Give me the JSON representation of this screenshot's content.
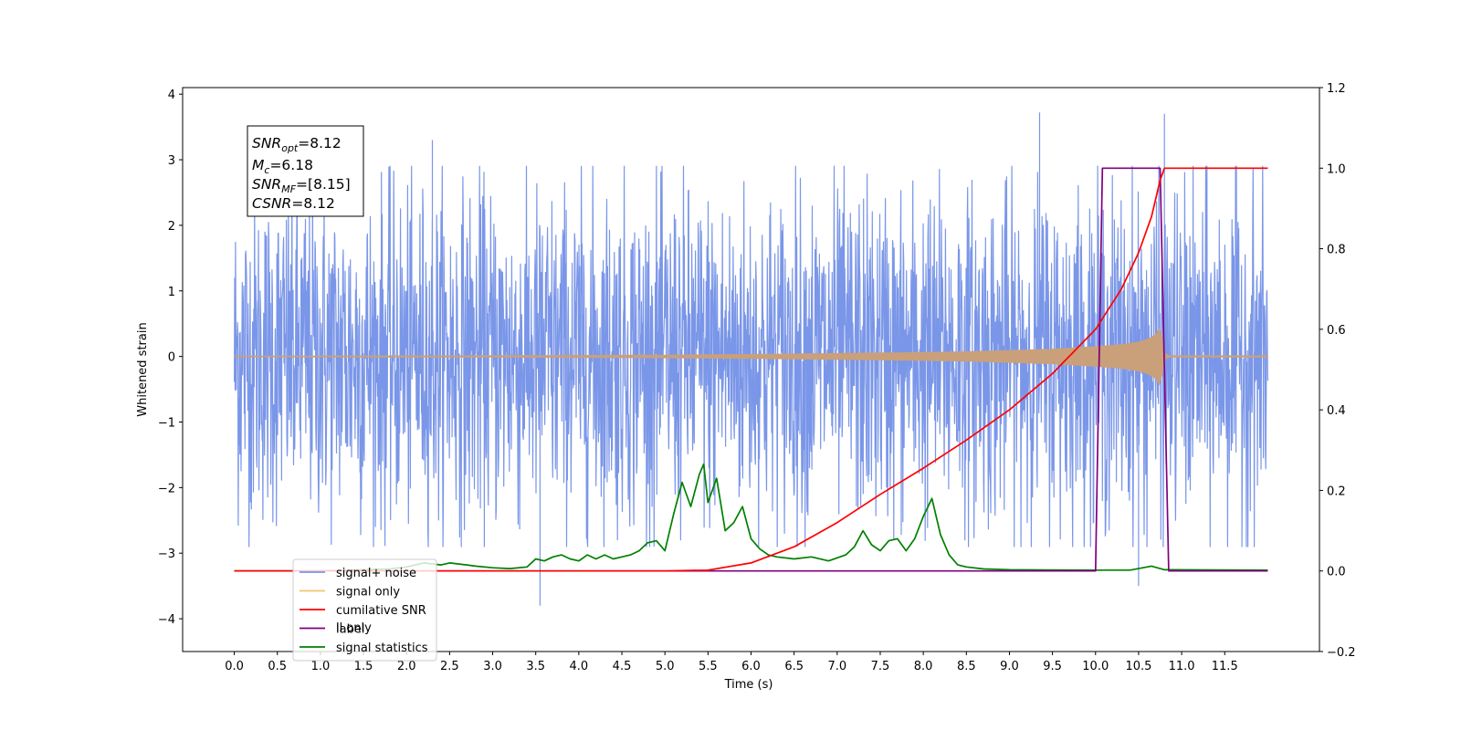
{
  "chart_data": {
    "type": "line",
    "title": "",
    "xlabel": "Time (s)",
    "ylabel": "Whitened strain",
    "xlim": [
      -0.6,
      12.6
    ],
    "ylim_left": [
      -4.5,
      4.1
    ],
    "ylim_right": [
      -0.2,
      1.2
    ],
    "x_ticks": [
      "0.0",
      "0.5",
      "1.0",
      "1.5",
      "2.0",
      "2.5",
      "3.0",
      "3.5",
      "4.0",
      "4.5",
      "5.0",
      "5.5",
      "6.0",
      "6.5",
      "7.0",
      "7.5",
      "8.0",
      "8.5",
      "9.0",
      "9.5",
      "10.0",
      "10.5",
      "11.0",
      "11.5"
    ],
    "y_ticks_left": [
      "4",
      "3",
      "2",
      "1",
      "0",
      "−1",
      "−2",
      "−3",
      "−4"
    ],
    "y_ticks_right": [
      "1.2",
      "1.0",
      "0.8",
      "0.6",
      "0.4",
      "0.2",
      "0.0",
      "−0.2"
    ],
    "annotation": {
      "snr_opt": {
        "name": "SNR",
        "sub": "opt",
        "value": "=8.12"
      },
      "mc": {
        "name": "M",
        "sub": "c",
        "value": "=6.18"
      },
      "snr_mf": {
        "name": "SNR",
        "sub": "MF",
        "value": "=[8.15]"
      },
      "csnr": {
        "name": "CSNR",
        "value": "=8.12"
      }
    },
    "legend": {
      "placement": "lower-left",
      "items": [
        {
          "label": "signal+ noise",
          "color": "#7a96e8"
        },
        {
          "label": "signal only",
          "color": "#f7c46b"
        },
        {
          "label": "cumilative SNR",
          "color": "#ff0000"
        },
        {
          "label": "label",
          "color": "#800080"
        },
        {
          "label": "signal statistics",
          "color": "#008000"
        }
      ]
    },
    "hidden_text": "ll only",
    "series": [
      {
        "name": "signal+ noise",
        "axis": "left",
        "color": "#7a96e8",
        "kind": "noise",
        "x_range": [
          0.0,
          12.0
        ],
        "typical_range": [
          -2.0,
          2.0
        ],
        "peak_x": [
          9.35,
          10.8,
          2.3,
          3.55,
          10.5
        ],
        "peak_y": [
          3.72,
          3.7,
          3.3,
          -3.8,
          -3.5
        ]
      },
      {
        "name": "signal only",
        "axis": "left",
        "color": "#c9a07a",
        "kind": "chirp",
        "x": [
          0,
          3,
          5,
          6,
          7,
          8,
          8.5,
          9,
          9.5,
          10,
          10.3,
          10.5,
          10.6,
          10.7,
          10.75,
          10.8,
          10.85,
          12.0
        ],
        "envelope": [
          0.005,
          0.01,
          0.02,
          0.03,
          0.045,
          0.06,
          0.07,
          0.09,
          0.11,
          0.15,
          0.18,
          0.22,
          0.26,
          0.33,
          0.45,
          0.05,
          0.01,
          0.01
        ]
      },
      {
        "name": "cumilative SNR",
        "axis": "right",
        "color": "#ff0000",
        "x": [
          0,
          5.0,
          5.5,
          6.0,
          6.5,
          7.0,
          7.5,
          8.0,
          8.5,
          9.0,
          9.5,
          10.0,
          10.3,
          10.5,
          10.65,
          10.75,
          10.8,
          12.0
        ],
        "values": [
          0,
          0,
          0.002,
          0.02,
          0.06,
          0.12,
          0.19,
          0.255,
          0.325,
          0.4,
          0.49,
          0.6,
          0.7,
          0.79,
          0.88,
          0.97,
          1.0,
          1.0
        ]
      },
      {
        "name": "label",
        "axis": "right",
        "color": "#800080",
        "x": [
          0,
          10.0,
          10.08,
          10.75,
          10.85,
          12.0
        ],
        "values": [
          0,
          0,
          1.0,
          1.0,
          0,
          0
        ]
      },
      {
        "name": "signal statistics",
        "axis": "right",
        "color": "#008000",
        "x": [
          0,
          1.0,
          1.8,
          2.0,
          2.2,
          2.4,
          2.5,
          2.7,
          2.8,
          3.0,
          3.2,
          3.4,
          3.5,
          3.6,
          3.7,
          3.8,
          3.9,
          4.0,
          4.1,
          4.2,
          4.3,
          4.4,
          4.5,
          4.6,
          4.7,
          4.8,
          4.9,
          5.0,
          5.1,
          5.2,
          5.3,
          5.4,
          5.45,
          5.5,
          5.6,
          5.7,
          5.8,
          5.9,
          6.0,
          6.1,
          6.2,
          6.3,
          6.5,
          6.7,
          6.9,
          7.1,
          7.2,
          7.3,
          7.4,
          7.5,
          7.6,
          7.7,
          7.8,
          7.9,
          8.0,
          8.1,
          8.2,
          8.3,
          8.4,
          8.5,
          8.7,
          9.0,
          10.0,
          10.4,
          10.55,
          10.65,
          10.8,
          12.0
        ],
        "values": [
          0,
          0,
          0.005,
          0.01,
          0.02,
          0.015,
          0.02,
          0.015,
          0.012,
          0.008,
          0.006,
          0.01,
          0.03,
          0.025,
          0.035,
          0.04,
          0.03,
          0.025,
          0.04,
          0.03,
          0.04,
          0.03,
          0.035,
          0.04,
          0.05,
          0.07,
          0.075,
          0.05,
          0.14,
          0.22,
          0.16,
          0.24,
          0.265,
          0.17,
          0.23,
          0.1,
          0.12,
          0.16,
          0.08,
          0.055,
          0.04,
          0.035,
          0.03,
          0.035,
          0.025,
          0.04,
          0.06,
          0.1,
          0.065,
          0.05,
          0.075,
          0.08,
          0.05,
          0.08,
          0.135,
          0.18,
          0.09,
          0.04,
          0.015,
          0.01,
          0.005,
          0.003,
          0.002,
          0.002,
          0.008,
          0.012,
          0.003,
          0.002
        ]
      }
    ]
  }
}
